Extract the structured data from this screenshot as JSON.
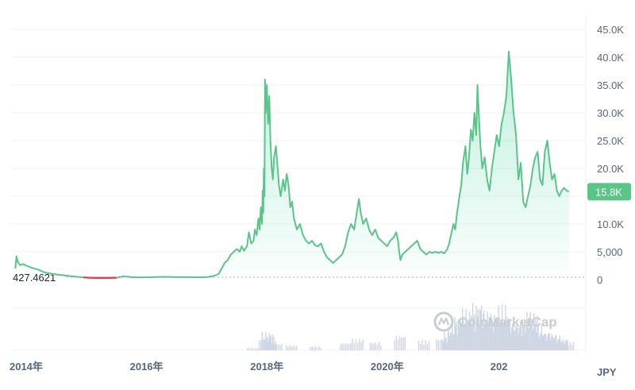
{
  "chart_data": {
    "type": "area",
    "title": "",
    "xlabel": "",
    "ylabel": "",
    "unit_label": "JPY",
    "watermark": "CoinMarketCap",
    "ylim": [
      0,
      45000
    ],
    "yticks": [
      0,
      5000,
      10000,
      15000,
      20000,
      25000,
      30000,
      35000,
      40000,
      45000
    ],
    "ytick_labels": [
      "0",
      "5,000",
      "10.0K",
      "15.0K",
      "20.0K",
      "25.0K",
      "30.0K",
      "35.0K",
      "40.0K",
      "45.0K"
    ],
    "xlim": [
      2013.75,
      2023.3
    ],
    "xticks": [
      2014,
      2016,
      2018,
      2020,
      2022
    ],
    "xtick_labels": [
      "2014年",
      "2016年",
      "2018年",
      "2020年",
      "202"
    ],
    "baseline_value": 427.4621,
    "baseline_label": "427.4621",
    "current_value": 15800,
    "current_label": "15.8K",
    "colors": {
      "up": "#16c784",
      "down": "#ea3943",
      "line": "#5bc589",
      "badge": "#5bc589"
    },
    "series": [
      {
        "values_x": [
          2013.82,
          2013.84,
          2013.86,
          2013.9,
          2013.95,
          2014.0,
          2014.1,
          2014.2,
          2014.3,
          2014.45,
          2014.6,
          2014.75,
          2014.85,
          2014.95,
          2015.05,
          2015.2,
          2015.35,
          2015.5,
          2015.62,
          2015.75,
          2015.9,
          2016.1,
          2016.3,
          2016.5,
          2016.7,
          2016.9,
          2017.0,
          2017.1,
          2017.2,
          2017.25,
          2017.3,
          2017.35,
          2017.4,
          2017.45,
          2017.5,
          2017.55,
          2017.58,
          2017.62,
          2017.67,
          2017.7,
          2017.74,
          2017.78,
          2017.8,
          2017.83,
          2017.86,
          2017.88,
          2017.9,
          2017.92,
          2017.93,
          2017.94,
          2017.95,
          2017.96,
          2017.97,
          2017.98,
          2017.99,
          2018.0,
          2018.02,
          2018.04,
          2018.06,
          2018.08,
          2018.1,
          2018.12,
          2018.15,
          2018.18,
          2018.2,
          2018.23,
          2018.27,
          2018.3,
          2018.33,
          2018.36,
          2018.39,
          2018.42,
          2018.45,
          2018.5,
          2018.55,
          2018.6,
          2018.65,
          2018.7,
          2018.75,
          2018.8,
          2018.85,
          2018.9,
          2018.95,
          2019.0,
          2019.05,
          2019.1,
          2019.15,
          2019.2,
          2019.25,
          2019.3,
          2019.35,
          2019.4,
          2019.45,
          2019.48,
          2019.5,
          2019.53,
          2019.56,
          2019.6,
          2019.65,
          2019.7,
          2019.75,
          2019.8,
          2019.85,
          2019.9,
          2019.95,
          2020.0,
          2020.05,
          2020.1,
          2020.15,
          2020.18,
          2020.2,
          2020.22,
          2020.25,
          2020.3,
          2020.35,
          2020.4,
          2020.45,
          2020.5,
          2020.55,
          2020.6,
          2020.65,
          2020.7,
          2020.75,
          2020.8,
          2020.85,
          2020.9,
          2020.95,
          2021.0,
          2021.03,
          2021.06,
          2021.1,
          2021.13,
          2021.16,
          2021.2,
          2021.23,
          2021.26,
          2021.3,
          2021.33,
          2021.36,
          2021.39,
          2021.42,
          2021.45,
          2021.48,
          2021.5,
          2021.53,
          2021.55,
          2021.58,
          2021.62,
          2021.66,
          2021.7,
          2021.74,
          2021.78,
          2021.82,
          2021.86,
          2021.9,
          2021.94,
          2021.98,
          2022.02,
          2022.06,
          2022.1,
          2022.14,
          2022.18,
          2022.22,
          2022.26,
          2022.3,
          2022.34,
          2022.38,
          2022.42,
          2022.46,
          2022.5,
          2022.54,
          2022.58,
          2022.62,
          2022.66,
          2022.7,
          2022.74,
          2022.78,
          2022.82,
          2022.86,
          2022.9,
          2022.94,
          2022.98,
          2023.02
        ],
        "values_y": [
          2000,
          4200,
          3200,
          2600,
          2800,
          2500,
          2100,
          1800,
          1300,
          1000,
          800,
          600,
          500,
          400,
          350,
          300,
          300,
          350,
          600,
          450,
          400,
          450,
          500,
          450,
          450,
          420,
          450,
          600,
          1000,
          2000,
          3000,
          3500,
          4500,
          5000,
          5500,
          5000,
          6000,
          5200,
          6000,
          8500,
          6500,
          7000,
          9000,
          8000,
          11000,
          9000,
          13000,
          10000,
          16000,
          12000,
          20000,
          15000,
          36000,
          30000,
          32000,
          35000,
          28000,
          33000,
          25000,
          20000,
          18000,
          22000,
          24000,
          20000,
          17000,
          15000,
          18000,
          16000,
          19000,
          17000,
          13000,
          14000,
          11000,
          9000,
          10000,
          8000,
          7000,
          6500,
          7000,
          6200,
          6000,
          6500,
          5000,
          4000,
          3500,
          3000,
          3500,
          4000,
          4500,
          6000,
          8500,
          10000,
          9000,
          11000,
          12500,
          14500,
          12000,
          10000,
          11000,
          9000,
          8000,
          9000,
          7500,
          7000,
          6500,
          6000,
          7000,
          7500,
          8500,
          7000,
          5000,
          3500,
          4500,
          5000,
          5500,
          6000,
          6500,
          7000,
          5500,
          5000,
          4500,
          5000,
          4800,
          5000,
          4800,
          5000,
          4700,
          5500,
          6500,
          8000,
          10000,
          9000,
          12000,
          15000,
          17000,
          21000,
          24000,
          19000,
          22000,
          27000,
          25000,
          30000,
          26000,
          35000,
          28000,
          24000,
          20000,
          22000,
          18000,
          16000,
          20000,
          23000,
          26000,
          24000,
          28000,
          30000,
          33000,
          41000,
          36000,
          30000,
          26000,
          18000,
          21000,
          14000,
          13000,
          15000,
          17000,
          20000,
          22000,
          23000,
          18000,
          17000,
          23000,
          25000,
          21000,
          18000,
          19000,
          16000,
          15000,
          16000,
          16500,
          16000,
          15800
        ]
      }
    ],
    "down_segment": {
      "from_x": 2014.95,
      "to_x": 2015.5
    },
    "volume": {
      "x": [
        2017.75,
        2017.95,
        2018.0,
        2018.05,
        2018.15,
        2018.4,
        2018.8,
        2019.3,
        2019.5,
        2019.8,
        2020.2,
        2020.6,
        2020.9,
        2021.0,
        2021.1,
        2021.2,
        2021.3,
        2021.4,
        2021.5,
        2021.6,
        2021.7,
        2021.8,
        2021.9,
        2022.0,
        2022.1,
        2022.2,
        2022.3,
        2022.4,
        2022.5,
        2022.6,
        2022.7,
        2022.8,
        2022.9,
        2023.0
      ],
      "values": [
        3,
        14,
        22,
        16,
        8,
        6,
        5,
        9,
        14,
        10,
        18,
        12,
        14,
        22,
        30,
        42,
        50,
        40,
        58,
        48,
        36,
        44,
        55,
        40,
        32,
        30,
        38,
        46,
        30,
        22,
        20,
        18,
        14,
        10
      ]
    }
  }
}
